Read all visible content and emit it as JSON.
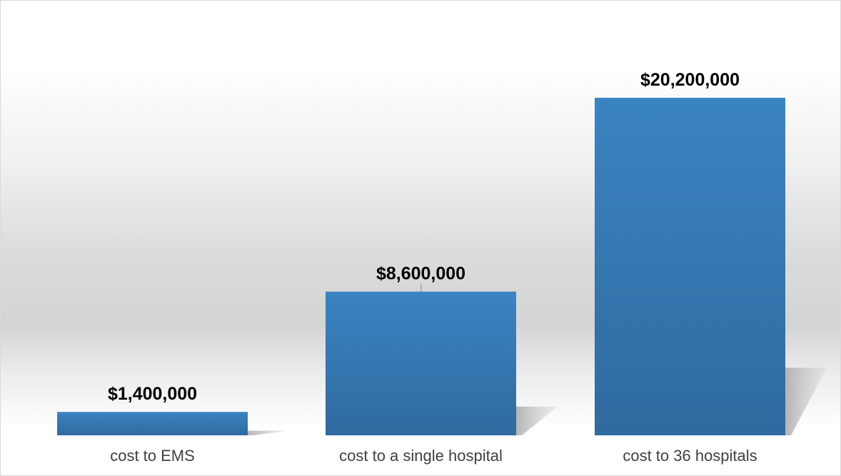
{
  "chart_data": {
    "type": "bar",
    "title": "",
    "xlabel": "",
    "ylabel": "",
    "categories": [
      "cost to EMS",
      "cost to a single hospital",
      "cost to 36 hospitals"
    ],
    "values": [
      1400000,
      8600000,
      20200000
    ],
    "value_labels": [
      "$1,400,000",
      "$8,600,000",
      "$20,200,000"
    ],
    "ylim": [
      0,
      20200000
    ],
    "grid": false,
    "legend": "none",
    "colors": {
      "bar_top": "#3a84c2",
      "bar_bottom": "#2f6aa0",
      "shadow": "#b8b8b8",
      "label_text": "#000000",
      "category_text": "#404040"
    }
  }
}
